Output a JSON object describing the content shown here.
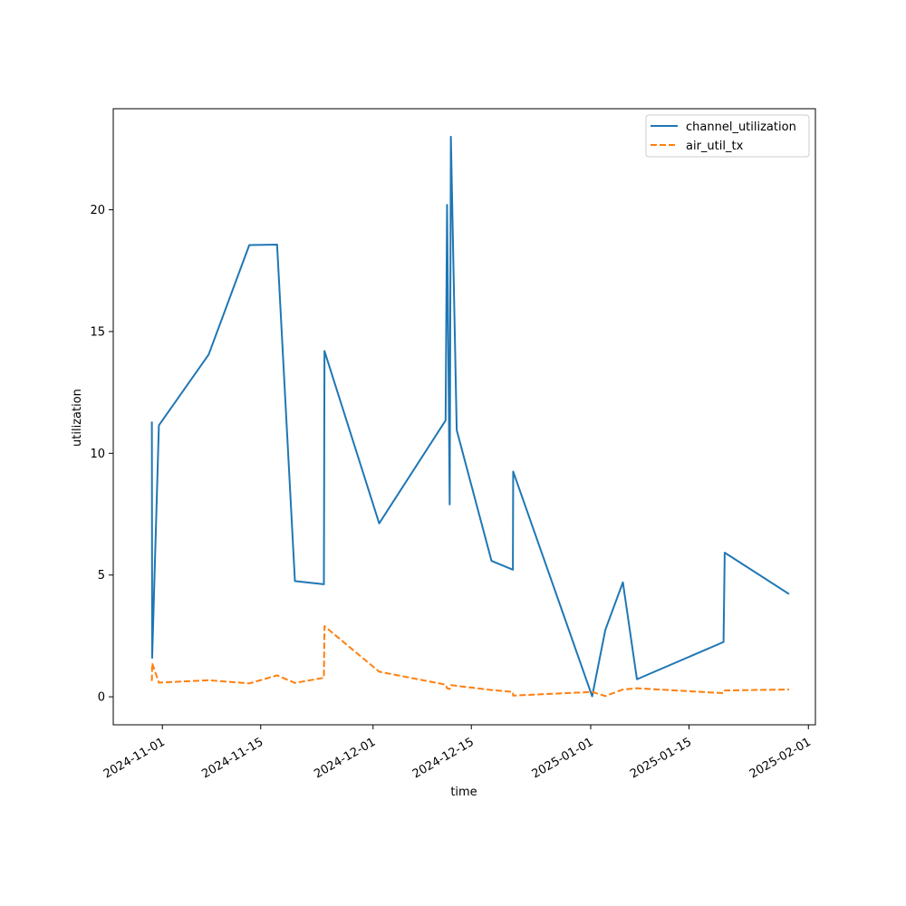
{
  "chart_data": {
    "type": "line",
    "title": "",
    "xlabel": "time",
    "ylabel": "utilization",
    "x_type": "date",
    "xlim": [
      "2024-10-25",
      "2025-02-02"
    ],
    "ylim": [
      -1.15,
      24.15
    ],
    "grid": false,
    "legend_placement": "top-right",
    "x_ticks": [
      {
        "value": "2024-11-01",
        "label": "2024-11-01"
      },
      {
        "value": "2024-11-15",
        "label": "2024-11-15"
      },
      {
        "value": "2024-12-01",
        "label": "2024-12-01"
      },
      {
        "value": "2024-12-15",
        "label": "2024-12-15"
      },
      {
        "value": "2025-01-01",
        "label": "2025-01-01"
      },
      {
        "value": "2025-01-15",
        "label": "2025-01-15"
      },
      {
        "value": "2025-02-01",
        "label": "2025-02-01"
      }
    ],
    "y_ticks": [
      {
        "value": 0,
        "label": "0"
      },
      {
        "value": 5,
        "label": "5"
      },
      {
        "value": 10,
        "label": "10"
      },
      {
        "value": 15,
        "label": "15"
      },
      {
        "value": 20,
        "label": "20"
      }
    ],
    "series": [
      {
        "name": "channel_utilization",
        "color": "#1f77b4",
        "style": "solid",
        "points": [
          [
            "2024-10-30T12:00",
            11.3
          ],
          [
            "2024-10-30T13:00",
            1.6
          ],
          [
            "2024-10-31T12:00",
            11.15
          ],
          [
            "2024-11-07T14:00",
            14.05
          ],
          [
            "2024-11-13T09:00",
            18.55
          ],
          [
            "2024-11-17T08:00",
            18.57
          ],
          [
            "2024-11-19T21:00",
            4.75
          ],
          [
            "2024-11-24T00:00",
            4.62
          ],
          [
            "2024-11-24T02:00",
            14.2
          ],
          [
            "2024-12-01T21:00",
            7.12
          ],
          [
            "2024-12-11T08:00",
            11.35
          ],
          [
            "2024-12-11T13:00",
            20.2
          ],
          [
            "2024-12-11T22:00",
            7.9
          ],
          [
            "2024-12-12T02:00",
            23.0
          ],
          [
            "2024-12-12T22:00",
            10.95
          ],
          [
            "2024-12-17T21:00",
            5.58
          ],
          [
            "2024-12-20T22:00",
            5.22
          ],
          [
            "2024-12-20T23:00",
            9.25
          ],
          [
            "2025-01-01T05:00",
            0.02
          ],
          [
            "2025-01-03T02:00",
            2.75
          ],
          [
            "2025-01-05T14:00",
            4.7
          ],
          [
            "2025-01-07T14:00",
            0.72
          ],
          [
            "2025-01-19T22:00",
            2.25
          ],
          [
            "2025-01-20T02:00",
            5.92
          ],
          [
            "2025-01-29T06:00",
            4.22
          ]
        ]
      },
      {
        "name": "air_util_tx",
        "color": "#ff7f0e",
        "style": "dashed",
        "points": [
          [
            "2024-10-30T12:00",
            0.65
          ],
          [
            "2024-10-30T13:00",
            1.38
          ],
          [
            "2024-10-31T12:00",
            0.58
          ],
          [
            "2024-11-07T14:00",
            0.68
          ],
          [
            "2024-11-13T09:00",
            0.55
          ],
          [
            "2024-11-17T08:00",
            0.88
          ],
          [
            "2024-11-19T21:00",
            0.57
          ],
          [
            "2024-11-24T00:00",
            0.78
          ],
          [
            "2024-11-24T02:00",
            2.9
          ],
          [
            "2024-12-01T21:00",
            1.03
          ],
          [
            "2024-12-11T08:00",
            0.5
          ],
          [
            "2024-12-11T13:00",
            0.35
          ],
          [
            "2024-12-11T22:00",
            0.32
          ],
          [
            "2024-12-12T02:00",
            0.48
          ],
          [
            "2024-12-12T22:00",
            0.45
          ],
          [
            "2024-12-17T21:00",
            0.28
          ],
          [
            "2024-12-20T22:00",
            0.2
          ],
          [
            "2024-12-20T23:00",
            0.05
          ],
          [
            "2025-01-01T05:00",
            0.2
          ],
          [
            "2025-01-03T02:00",
            0.03
          ],
          [
            "2025-01-05T14:00",
            0.3
          ],
          [
            "2025-01-07T14:00",
            0.35
          ],
          [
            "2025-01-19T22:00",
            0.15
          ],
          [
            "2025-01-20T02:00",
            0.26
          ],
          [
            "2025-01-29T06:00",
            0.3
          ]
        ]
      }
    ]
  }
}
